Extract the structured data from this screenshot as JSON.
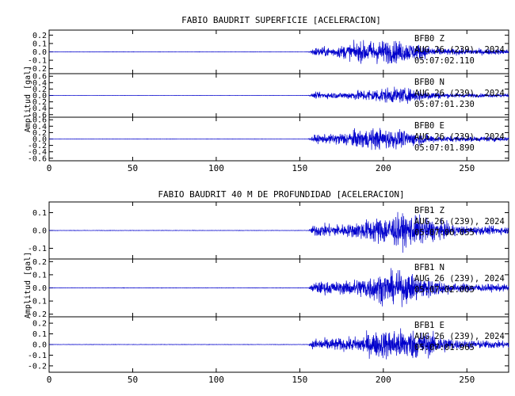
{
  "chart_data": [
    {
      "type": "line",
      "title": "FABIO BAUDRIT SUPERFICIE [ACELERACION]",
      "ylabel": "Amplitud [gal]",
      "xlim": [
        0,
        275
      ],
      "xticks": [
        0,
        50,
        100,
        150,
        200,
        250
      ],
      "line_color": "#0000cc",
      "grid": false,
      "series": [
        {
          "name": "BFB0 Z",
          "annotation": [
            "BFB0 Z",
            "AUG 26 (239), 2024",
            "05:07:02.110"
          ],
          "ylim": [
            -0.26,
            0.26
          ],
          "yticks": [
            -0.2,
            -0.1,
            0.0,
            0.1,
            0.2
          ],
          "ytick_labels": [
            "-0.2",
            "-0.1",
            "0.0",
            "0.1",
            "0.2"
          ],
          "onset": 155,
          "peak_time": 200,
          "peak_amp": 0.24
        },
        {
          "name": "BFB0 N",
          "annotation": [
            "BFB0 N",
            "AUG 26 (239), 2024",
            "05:07:01.230"
          ],
          "ylim": [
            -0.68,
            0.68
          ],
          "yticks": [
            -0.6,
            -0.4,
            -0.2,
            0.0,
            0.2,
            0.4,
            0.6
          ],
          "ytick_labels": [
            "-0.6",
            "-0.4",
            "-0.2",
            "0.0",
            "0.2",
            "0.4",
            "0.6"
          ],
          "onset": 155,
          "peak_time": 205,
          "peak_amp": 0.4
        },
        {
          "name": "BFB0 E",
          "annotation": [
            "BFB0 E",
            "AUG 26 (239), 2024",
            "05:07:01.890"
          ],
          "ylim": [
            -0.68,
            0.68
          ],
          "yticks": [
            -0.6,
            -0.4,
            -0.2,
            0.0,
            0.2,
            0.4,
            0.6
          ],
          "ytick_labels": [
            "-0.6",
            "-0.4",
            "-0.2",
            "0.0",
            "0.2",
            "0.4",
            "0.6"
          ],
          "onset": 155,
          "peak_time": 197,
          "peak_amp": 0.55
        }
      ]
    },
    {
      "type": "line",
      "title": "FABIO BAUDRIT 40 M DE PROFUNDIDAD [ACELERACION]",
      "ylabel": "Amplitud [gal]",
      "xlim": [
        0,
        275
      ],
      "xticks": [
        0,
        50,
        100,
        150,
        200,
        250
      ],
      "line_color": "#0000cc",
      "grid": false,
      "series": [
        {
          "name": "BFB1 Z",
          "annotation": [
            "BFB1 Z",
            "AUG 26 (239), 2024",
            "05:07:00.055"
          ],
          "ylim": [
            -0.16,
            0.16
          ],
          "yticks": [
            -0.1,
            0.0,
            0.1
          ],
          "ytick_labels": [
            "-0.1",
            "0.0",
            "0.1"
          ],
          "onset": 155,
          "peak_time": 210,
          "peak_amp": 0.15
        },
        {
          "name": "BFB1 N",
          "annotation": [
            "BFB1 N",
            "AUG 26 (239), 2024",
            "05:07:02.005"
          ],
          "ylim": [
            -0.22,
            0.22
          ],
          "yticks": [
            -0.2,
            -0.1,
            0.0,
            0.1,
            0.2
          ],
          "ytick_labels": [
            "-0.2",
            "-0.1",
            "0.0",
            "0.1",
            "0.2"
          ],
          "onset": 155,
          "peak_time": 207,
          "peak_amp": 0.2
        },
        {
          "name": "BFB1 E",
          "annotation": [
            "BFB1 E",
            "AUG 26 (239), 2024",
            "05:07:01.965"
          ],
          "ylim": [
            -0.26,
            0.26
          ],
          "yticks": [
            -0.2,
            -0.1,
            0.0,
            0.1,
            0.2
          ],
          "ytick_labels": [
            "-0.2",
            "-0.1",
            "0.0",
            "0.1",
            "0.2"
          ],
          "onset": 155,
          "peak_time": 210,
          "peak_amp": 0.25
        }
      ]
    }
  ]
}
